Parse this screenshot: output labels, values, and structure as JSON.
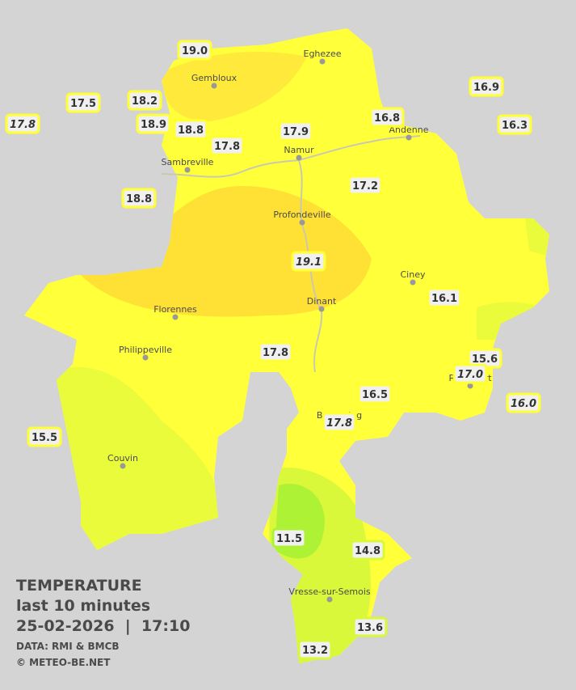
{
  "title": {
    "line1": "TEMPERATURE",
    "line2": "last 10 minutes",
    "line3": "25-02-2026  |  17:10",
    "source": "DATA: RMI & BMCB",
    "copyright": "© METEO-BE.NET"
  },
  "towns": [
    "Eghezee",
    "Gembloux",
    "Andenne",
    "Namur",
    "Sambreville",
    "Profondeville",
    "Ciney",
    "Florennes",
    "Dinant",
    "Philippeville",
    "Rochefort",
    "Beauraing",
    "Couvin",
    "Vresse-sur-Semois"
  ],
  "stations": [
    "19.0",
    "17.5",
    "18.2",
    "17.8",
    "18.9",
    "18.8",
    "17.8",
    "17.9",
    "16.8",
    "16.9",
    "16.3",
    "17.2",
    "18.8",
    "19.1",
    "16.1",
    "17.8",
    "15.6",
    "17.0",
    "16.5",
    "16.0",
    "17.8",
    "15.5",
    "11.5",
    "14.8",
    "13.6",
    "13.2"
  ]
}
